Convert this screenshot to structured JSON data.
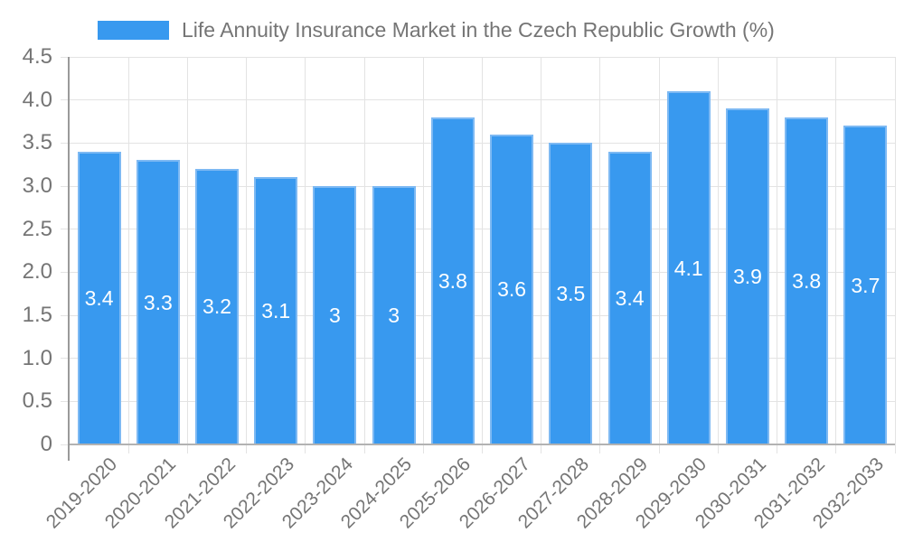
{
  "chart_data": {
    "type": "bar",
    "title": "Life Annuity Insurance Market in the Czech Republic Growth (%)",
    "categories": [
      "2019-2020",
      "2020-2021",
      "2021-2022",
      "2022-2023",
      "2023-2024",
      "2024-2025",
      "2025-2026",
      "2026-2027",
      "2027-2028",
      "2028-2029",
      "2029-2030",
      "2030-2031",
      "2031-2032",
      "2032-2033"
    ],
    "values": [
      3.4,
      3.3,
      3.2,
      3.1,
      3,
      3,
      3.8,
      3.6,
      3.5,
      3.4,
      4.1,
      3.9,
      3.8,
      3.7
    ],
    "bar_labels": [
      "3.4",
      "3.3",
      "3.2",
      "3.1",
      "3",
      "3",
      "3.8",
      "3.6",
      "3.5",
      "3.4",
      "4.1",
      "3.9",
      "3.8",
      "3.7"
    ],
    "xlabel": "",
    "ylabel": "",
    "ylim": [
      0,
      4.5
    ],
    "ytick_step": 0.5,
    "ytick_labels": [
      "0",
      "0.5",
      "1.0",
      "1.5",
      "2.0",
      "2.5",
      "3.0",
      "3.5",
      "4.0",
      "4.5"
    ],
    "grid": true,
    "legend_position": "top-left",
    "colors": {
      "bar": "#3899ef",
      "bar_border": "#7db9f3",
      "bar_label": "#ffffff",
      "grid": "#e3e3e3",
      "axis_line": "#9a9a9a",
      "baseline": "#b2b2b2",
      "text": "#757575",
      "background": "#ffffff"
    }
  }
}
